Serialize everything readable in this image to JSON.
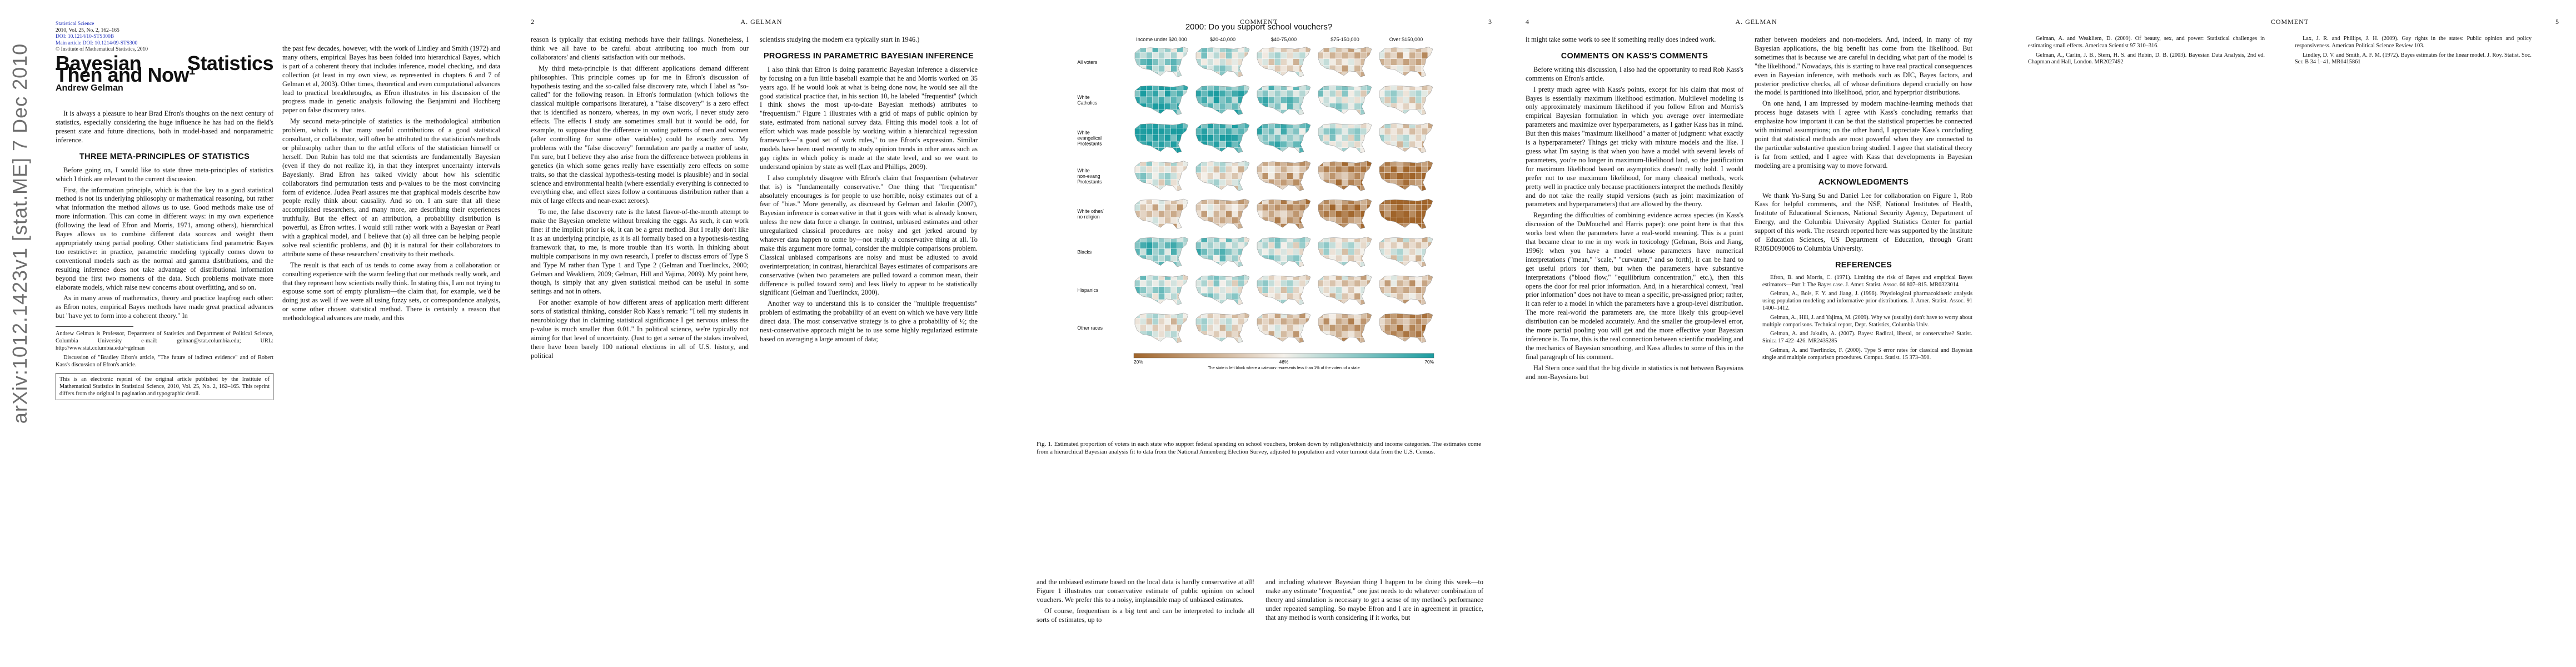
{
  "arxiv_stamp": "arXiv:1012.1423v1  [stat.ME]  7 Dec 2010",
  "page1": {
    "meta": [
      "Statistical Science",
      "2010, Vol. 25, No. 2, 162–165",
      "DOI: 10.1214/10-STS300B",
      "Main article DOI: 10.1214/09-STS300",
      "© Institute of Mathematical Statistics, 2010"
    ],
    "title": "Bayesian Statistics Then and Now",
    "title_sup": "1",
    "author": "Andrew Gelman",
    "col1_paras": [
      "It is always a pleasure to hear Brad Efron's thoughts on the next century of statistics, especially considering the huge influence he has had on the field's present state and future directions, both in model-based and nonparametric inference."
    ],
    "sec1": "THREE META-PRINCIPLES OF STATISTICS",
    "col1_paras2": [
      "Before going on, I would like to state three meta-principles of statistics which I think are relevant to the current discussion.",
      "First, the information principle, which is that the key to a good statistical method is not its underlying philosophy or mathematical reasoning, but rather what information the method allows us to use. Good methods make use of more information. This can come in different ways: in my own experience (following the lead of Efron and Morris, 1971, among others), hierarchical Bayes allows us to combine different data sources and weight them appropriately using partial pooling. Other statisticians find parametric Bayes too restrictive: in practice, parametric modeling typically comes down to conventional models such as the normal and gamma distributions, and the resulting inference does not take advantage of distributional information beyond the first two moments of the data. Such problems motivate more elaborate models, which raise new concerns about overfitting, and so on.",
      "As in many areas of mathematics, theory and practice leapfrog each other: as Efron notes, empirical Bayes methods have made great practical advances but \"have yet to form into a coherent theory.\" In"
    ],
    "footnote": "Andrew Gelman is Professor, Department of Statistics and Department of Political Science, Columbia University e-mail: gelman@stat.columbia.edu; URL: http://www.stat.columbia.edu/~gelman",
    "footnote2": "Discussion of \"Bradley Efron's article, \"The future of indirect evidence\" and of Robert Kass's discussion of Efron's article.",
    "box_note": "This is an electronic reprint of the original article published by the Institute of Mathematical Statistics in Statistical Science, 2010, Vol. 25, No. 2, 162–165. This reprint differs from the original in pagination and typographic detail.",
    "page_num": "1",
    "col2_paras": [
      "the past few decades, however, with the work of Lindley and Smith (1972) and many others, empirical Bayes has been folded into hierarchical Bayes, which is part of a coherent theory that includes inference, model checking, and data collection (at least in my own view, as represented in chapters 6 and 7 of Gelman et al, 2003). Other times, theoretical and even computational advances lead to practical breakthroughs, as Efron illustrates in his discussion of the progress made in genetic analysis following the Benjamini and Hochberg paper on false discovery rates.",
      "My second meta-principle of statistics is the methodological attribution problem, which is that many useful contributions of a good statistical consultant, or collaborator, will often be attributed to the statistician's methods or philosophy rather than to the artful efforts of the statistician himself or herself. Don Rubin has told me that scientists are fundamentally Bayesian (even if they do not realize it), in that they interpret uncertainty intervals Bayesianly. Brad Efron has talked vividly about how his scientific collaborators find permutation tests and p-values to be the most convincing form of evidence. Judea Pearl assures me that graphical models describe how people really think about causality. And so on. I am sure that all these accomplished researchers, and many more, are describing their experiences truthfully. But the effect of an attribution, a probability distribution is powerful, as Efron writes. I would still rather work with a Bayesian or Pearl with a graphical model, and I believe that (a) all three can be helping people solve real scientific problems, and (b) it is natural for their collaborators to attribute some of these researchers' creativity to their methods.",
      "The result is that each of us tends to come away from a collaboration or consulting experience with the warm feeling that our methods really work, and that they represent how scientists really think. In stating this, I am not trying to espouse some sort of empty pluralism—the claim that, for example, we'd be doing just as well if we were all using fuzzy sets, or correspondence analysis, or some other chosen statistical method. There is certainly a reason that methodological advances are made, and this"
    ]
  },
  "page2": {
    "num": "2",
    "head_center": "A. GELMAN",
    "col1_paras": [
      "reason is typically that existing methods have their failings. Nonetheless, I think we all have to be careful about attributing too much from our collaborators' and clients' satisfaction with our methods.",
      "My third meta-principle is that different applications demand different philosophies. This principle comes up for me in Efron's discussion of hypothesis testing and the so-called false discovery rate, which I label as \"so-called\" for the following reason. In Efron's formulation (which follows the classical multiple comparisons literature), a \"false discovery\" is a zero effect that is identified as nonzero, whereas, in my own work, I never study zero effects. The effects I study are sometimes small but it would be odd, for example, to suppose that the difference in voting patterns of men and women (after controlling for some other variables) could be exactly zero. My problems with the \"false discovery\" formulation are partly a matter of taste, I'm sure, but I believe they also arise from the difference between problems in genetics (in which some genes really have essentially zero effects on some traits, so that the classical hypothesis-testing model is plausible) and in social science and environmental health (where essentially everything is connected to everything else, and effect sizes follow a continuous distribution rather than a mix of large effects and near-exact zeroes).",
      "To me, the false discovery rate is the latest flavor-of-the-month attempt to make the Bayesian omelette without breaking the eggs. As such, it can work fine: if the implicit prior is ok, it can be a great method. But I really don't like it as an underlying principle, as it is all formally based on a hypothesis-testing framework that, to me, is more trouble than it's worth. In thinking about multiple comparisons in my own research, I prefer to discuss errors of Type S and Type M rather than Type 1 and Type 2 (Gelman and Tuerlinckx, 2000; Gelman and Weakliem, 2009; Gelman, Hill and Yajima, 2009). My point here, though, is simply that any given statistical method can be useful in some settings and not in others.",
      "For another example of how different areas of application merit different sorts of statistical thinking, consider Rob Kass's remark: \"I tell my students in neurobiology that in claiming statistical significance I get nervous unless the p-value is much smaller than 0.01.\" In political science, we're typically not aiming for that level of uncertainty. (Just to get a sense of the stakes involved, there have been barely 100 national elections in all of U.S. history, and political"
    ],
    "col2_paras": [
      "scientists studying the modern era typically start in 1946.)"
    ],
    "sec1": "PROGRESS IN PARAMETRIC BAYESIAN INFERENCE",
    "col2_paras2": [
      "I also think that Efron is doing parametric Bayesian inference a disservice by focusing on a fun little baseball example that he and Morris worked on 35 years ago. If he would look at what is being done now, he would see all the good statistical practice that, in his section 10, he labeled \"frequentist\" (which I think shows the most up-to-date Bayesian methods) attributes to \"frequentism.\" Figure 1 illustrates with a grid of maps of public opinion by state, estimated from national survey data. Fitting this model took a lot of effort which was made possible by working within a hierarchical regression framework—\"a good set of work rules,\" to use Efron's expression. Similar models have been used recently to study opinion trends in other areas such as gay rights in which policy is made at the state level, and so we want to understand opinion by state as well (Lax and Phillips, 2009).",
      "I also completely disagree with Efron's claim that frequentism (whatever that is) is \"fundamentally conservative.\" One thing that \"frequentism\" absolutely encourages is for people to use horrible, noisy estimates out of a fear of \"bias.\" More generally, as discussed by Gelman and Jakulin (2007), Bayesian inference is conservative in that it goes with what is already known, unless the new data force a change. In contrast, unbiased estimates and other unregularized classical procedures are noisy and get jerked around by whatever data happen to come by—not really a conservative thing at all. To make this argument more formal, consider the multiple comparisons problem. Classical unbiased comparisons are noisy and must be adjusted to avoid overinterpretation; in contrast, hierarchical Bayes estimates of comparisons are conservative (when two parameters are pulled toward a common mean, their difference is pulled toward zero) and less likely to appear to be statistically significant (Gelman and Tuerlinckx, 2000).",
      "Another way to understand this is to consider the \"multiple frequentists\" problem of estimating the probability of an event on which we have very little direct data. The most conservative strategy is to give a probability of ½; the next-conservative approach might be to use some highly regularized estimate based on averaging a large amount of data;"
    ]
  },
  "page3": {
    "num": "3",
    "head_center": "COMMENT",
    "fig_title": "2000: Do you support school vouchers?",
    "fig_cols": [
      "Income under $20,000",
      "$20-40,000",
      "$40-75,000",
      "$75-150,000",
      "Over $150,000"
    ],
    "fig_rows": [
      "All voters",
      "White Catholics",
      "White evangelical Protestants",
      "White non-evang Protestants",
      "White other/ no religion",
      "Blacks",
      "Hispanics",
      "Other races"
    ],
    "legend_ticks": [
      "20%",
      "46%",
      "70%"
    ],
    "legend_note": "The state is left blank where a category represents less than 1% of the voters of a state",
    "caption": "Fig. 1. Estimated proportion of voters in each state who support federal spending on school vouchers, broken down by religion/ethnicity and income categories. The estimates come from a hierarchical Bayesian analysis fit to data from the National Annenberg Election Survey, adjusted to population and voter turnout data from the U.S. Census.",
    "col1_paras": [
      "and the unbiased estimate based on the local data is hardly conservative at all! Figure 1 illustrates our conservative estimate of public opinion on school vouchers. We prefer this to a noisy, implausible map of unbiased estimates.",
      "Of course, frequentism is a big tent and can be interpreted to include all sorts of estimates, up to"
    ],
    "col2_paras": [
      "and including whatever Bayesian thing I happen to be doing this week—to make any estimate \"frequentist,\" one just needs to do whatever combination of theory and simulation is necessary to get a sense of my method's performance under repeated sampling. So maybe Efron and I are in agreement in practice, that any method is worth considering if it works, but"
    ],
    "colors": {
      "low": "#a0642a",
      "mid": "#f4f0ea",
      "high": "#1b9ca0"
    },
    "map_values": [
      [
        0.55,
        0.5,
        0.45,
        0.4,
        0.38
      ],
      [
        0.65,
        0.62,
        0.56,
        0.5,
        0.46
      ],
      [
        0.7,
        0.66,
        0.58,
        0.5,
        0.44
      ],
      [
        0.48,
        0.45,
        0.36,
        0.3,
        0.24
      ],
      [
        0.4,
        0.38,
        0.33,
        0.27,
        0.2
      ],
      [
        0.58,
        0.55,
        0.5,
        0.46,
        0.44
      ],
      [
        0.52,
        0.5,
        0.46,
        0.42,
        0.38
      ],
      [
        0.45,
        0.44,
        0.4,
        0.35,
        0.3
      ]
    ]
  },
  "page4": {
    "num": "4",
    "head_center": "A. GELMAN",
    "col1_paras": [
      "it might take some work to see if something really does indeed work."
    ],
    "sec1": "COMMENTS ON KASS'S COMMENTS",
    "col1_paras2": [
      "Before writing this discussion, I also had the opportunity to read Rob Kass's comments on Efron's article.",
      "I pretty much agree with Kass's points, except for his claim that most of Bayes is essentially maximum likelihood estimation. Multilevel modeling is only approximately maximum likelihood if you follow Efron and Morris's empirical Bayesian formulation in which you average over intermediate parameters and maximize over hyperparameters, as I gather Kass has in mind. But then this makes \"maximum likelihood\" a matter of judgment: what exactly is a hyperparameter? Things get tricky with mixture models and the like. I guess what I'm saying is that when you have a model with several levels of parameters, you're no longer in maximum-likelihood land, so the justification for maximum likelihood based on asymptotics doesn't really hold. I would prefer not to use maximum likelihood, for many classical methods, work pretty well in practice only because practitioners interpret the methods flexibly and do not take the really stupid versions (such as joint maximization of parameters and hyperparameters) that are allowed by the theory.",
      "Regarding the difficulties of combining evidence across species (in Kass's discussion of the DuMouchel and Harris paper): one point here is that this works best when the parameters have a real-world meaning. This is a point that became clear to me in my work in toxicology (Gelman, Bois and Jiang, 1996): when you have a model whose parameters have numerical interpretations (\"mean,\" \"scale,\" \"curvature,\" and so forth), it can be hard to get useful priors for them, but when the parameters have substantive interpretations (\"blood flow,\" \"equilibrium concentration,\" etc.), then this opens the door for real prior information. And, in a hierarchical context, \"real prior information\" does not have to mean a specific, pre-assigned prior; rather, it can refer to a model in which the parameters have a group-level distribution. The more real-world the parameters are, the more likely this group-level distribution can be modeled accurately. And the smaller the group-level error, the more partial pooling you will get and the more effective your Bayesian inference is. To me, this is the real connection between scientific modeling and the mechanics of Bayesian smoothing, and Kass alludes to some of this in the final paragraph of his comment.",
      "Hal Stern once said that the big divide in statistics is not between Bayesians and non-Bayesians but"
    ],
    "col2_paras": [
      "rather between modelers and non-modelers. And, indeed, in many of my Bayesian applications, the big benefit has come from the likelihood. But sometimes that is because we are careful in deciding what part of the model is \"the likelihood.\" Nowadays, this is starting to have real practical consequences even in Bayesian inference, with methods such as DIC, Bayes factors, and posterior predictive checks, all of whose definitions depend crucially on how the model is partitioned into likelihood, prior, and hyperprior distributions.",
      "On one hand, I am impressed by modern machine-learning methods that process huge datasets with I agree with Kass's concluding remarks that emphasize how important it can be that the statistical properties be connected with minimal assumptions; on the other hand, I appreciate Kass's concluding point that statistical methods are most powerful when they are connected to the particular substantive question being studied. I agree that statistical theory is far from settled, and I agree with Kass that developments in Bayesian modeling are a promising way to move forward."
    ],
    "sec2": "ACKNOWLEDGMENTS",
    "ack": "We thank Yu-Sung Su and Daniel Lee for collaboration on Figure 1, Rob Kass for helpful comments, and the NSF, National Institutes of Health, Institute of Educational Sciences, National Security Agency, Department of Energy, and the Columbia University Applied Statistics Center for partial support of this work. The research reported here was supported by the Institute of Education Sciences, US Department of Education, through Grant R305D090006 to Columbia University.",
    "sec3": "REFERENCES",
    "refs": [
      "Efron, B. and Morris, C. (1971). Limiting the risk of Bayes and empirical Bayes estimators—Part I: The Bayes case. J. Amer. Statist. Assoc. 66 807–815. MR0323014",
      "Gelman, A., Bois, F. Y. and Jiang, J. (1996). Physiological pharmacokinetic analysis using population modeling and informative prior distributions. J. Amer. Statist. Assoc. 91 1400–1412.",
      "Gelman, A., Hill, J. and Yajima, M. (2009). Why we (usually) don't have to worry about multiple comparisons. Technical report, Dept. Statistics, Columbia Univ.",
      "Gelman, A. and Jakulin, A. (2007). Bayes: Radical, liberal, or conservative? Statist. Sinica 17 422–426. MR2435285",
      "Gelman, A. and Tuerlinckx, F. (2000). Type S error rates for classical and Bayesian single and multiple comparison procedures. Comput. Statist. 15 373–390."
    ]
  },
  "page5": {
    "num": "5",
    "head_center": "COMMENT",
    "refs": [
      "Gelman, A. and Weakliem, D. (2009). Of beauty, sex, and power: Statistical challenges in estimating small effects. American Scientist 97 310–316.",
      "Gelman, A., Carlin, J. B., Stern, H. S. and Rubin, D. B. (2003). Bayesian Data Analysis, 2nd ed. Chapman and Hall, London. MR2027492",
      "Lax, J. R. and Phillips, J. H. (2009). Gay rights in the states: Public opinion and policy responsiveness. American Political Science Review 103.",
      "Lindley, D. V. and Smith, A. F. M. (1972). Bayes estimates for the linear model. J. Roy. Statist. Soc. Ser. B 34 1–41. MR0415861"
    ]
  }
}
